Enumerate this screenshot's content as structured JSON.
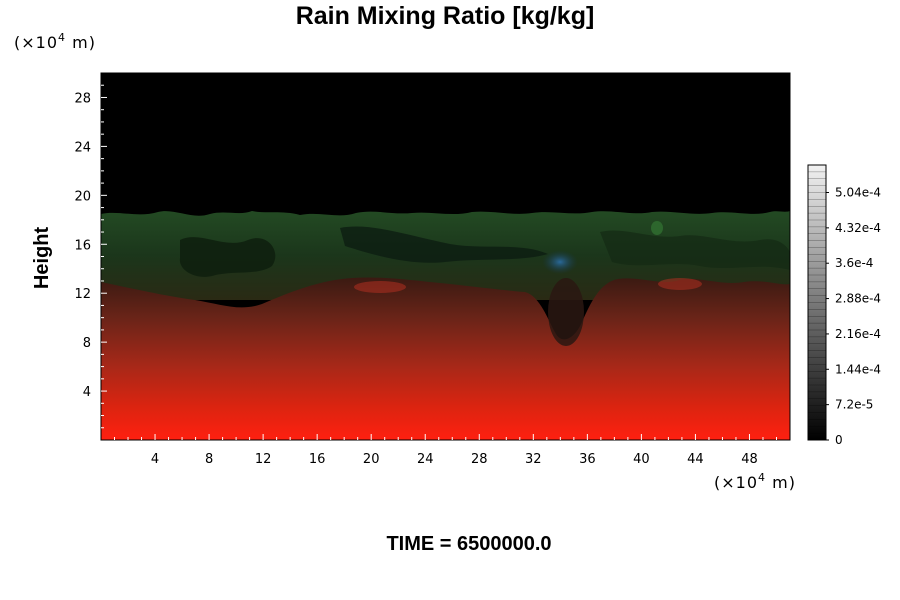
{
  "chart_data": {
    "type": "heatmap",
    "title": "Rain Mixing Ratio [kg/kg]",
    "ylabel": "Height",
    "y_unit": {
      "prefix": "(×10",
      "exp": "4",
      "suffix": " m)"
    },
    "x_unit": {
      "prefix": "(×10",
      "exp": "4",
      "suffix": " m)"
    },
    "xlim": [
      0,
      51
    ],
    "ylim": [
      0,
      30
    ],
    "x_ticks": [
      4,
      8,
      12,
      16,
      20,
      24,
      28,
      32,
      36,
      40,
      44,
      48
    ],
    "y_ticks": [
      4,
      8,
      12,
      16,
      20,
      24,
      28
    ],
    "colorbar": {
      "range": [
        0,
        0.00056
      ],
      "tick_values": [
        0,
        7.2e-05,
        0.000144,
        0.000216,
        0.000288,
        0.00036,
        0.000432,
        0.000504
      ],
      "tick_labels": [
        "0",
        "7.2e-5",
        "1.44e-4",
        "2.16e-4",
        "2.88e-4",
        "3.6e-4",
        "4.32e-4",
        "5.04e-4"
      ],
      "low_color": "#000000",
      "high_color": "#f2f2f2"
    },
    "layers": [
      {
        "name": "upper-black",
        "y_from": 19,
        "y_to": 30,
        "color": "#000000"
      },
      {
        "name": "green-band",
        "y_from": 13,
        "y_to": 19,
        "color": "#1c3a1c"
      },
      {
        "name": "red-gradient",
        "y_from": 0,
        "y_to": 13,
        "color_top": "#3a1a12",
        "color_bottom": "#ff2010"
      }
    ],
    "features": [
      {
        "name": "blue-blob",
        "x": 33.5,
        "y": 14.5,
        "color": "#1c4a70"
      },
      {
        "name": "downdraft",
        "x": 33.5,
        "y_from": 8,
        "y_to": 14,
        "color": "#2a1a12"
      }
    ],
    "time_label": "TIME = 6500000.0"
  }
}
